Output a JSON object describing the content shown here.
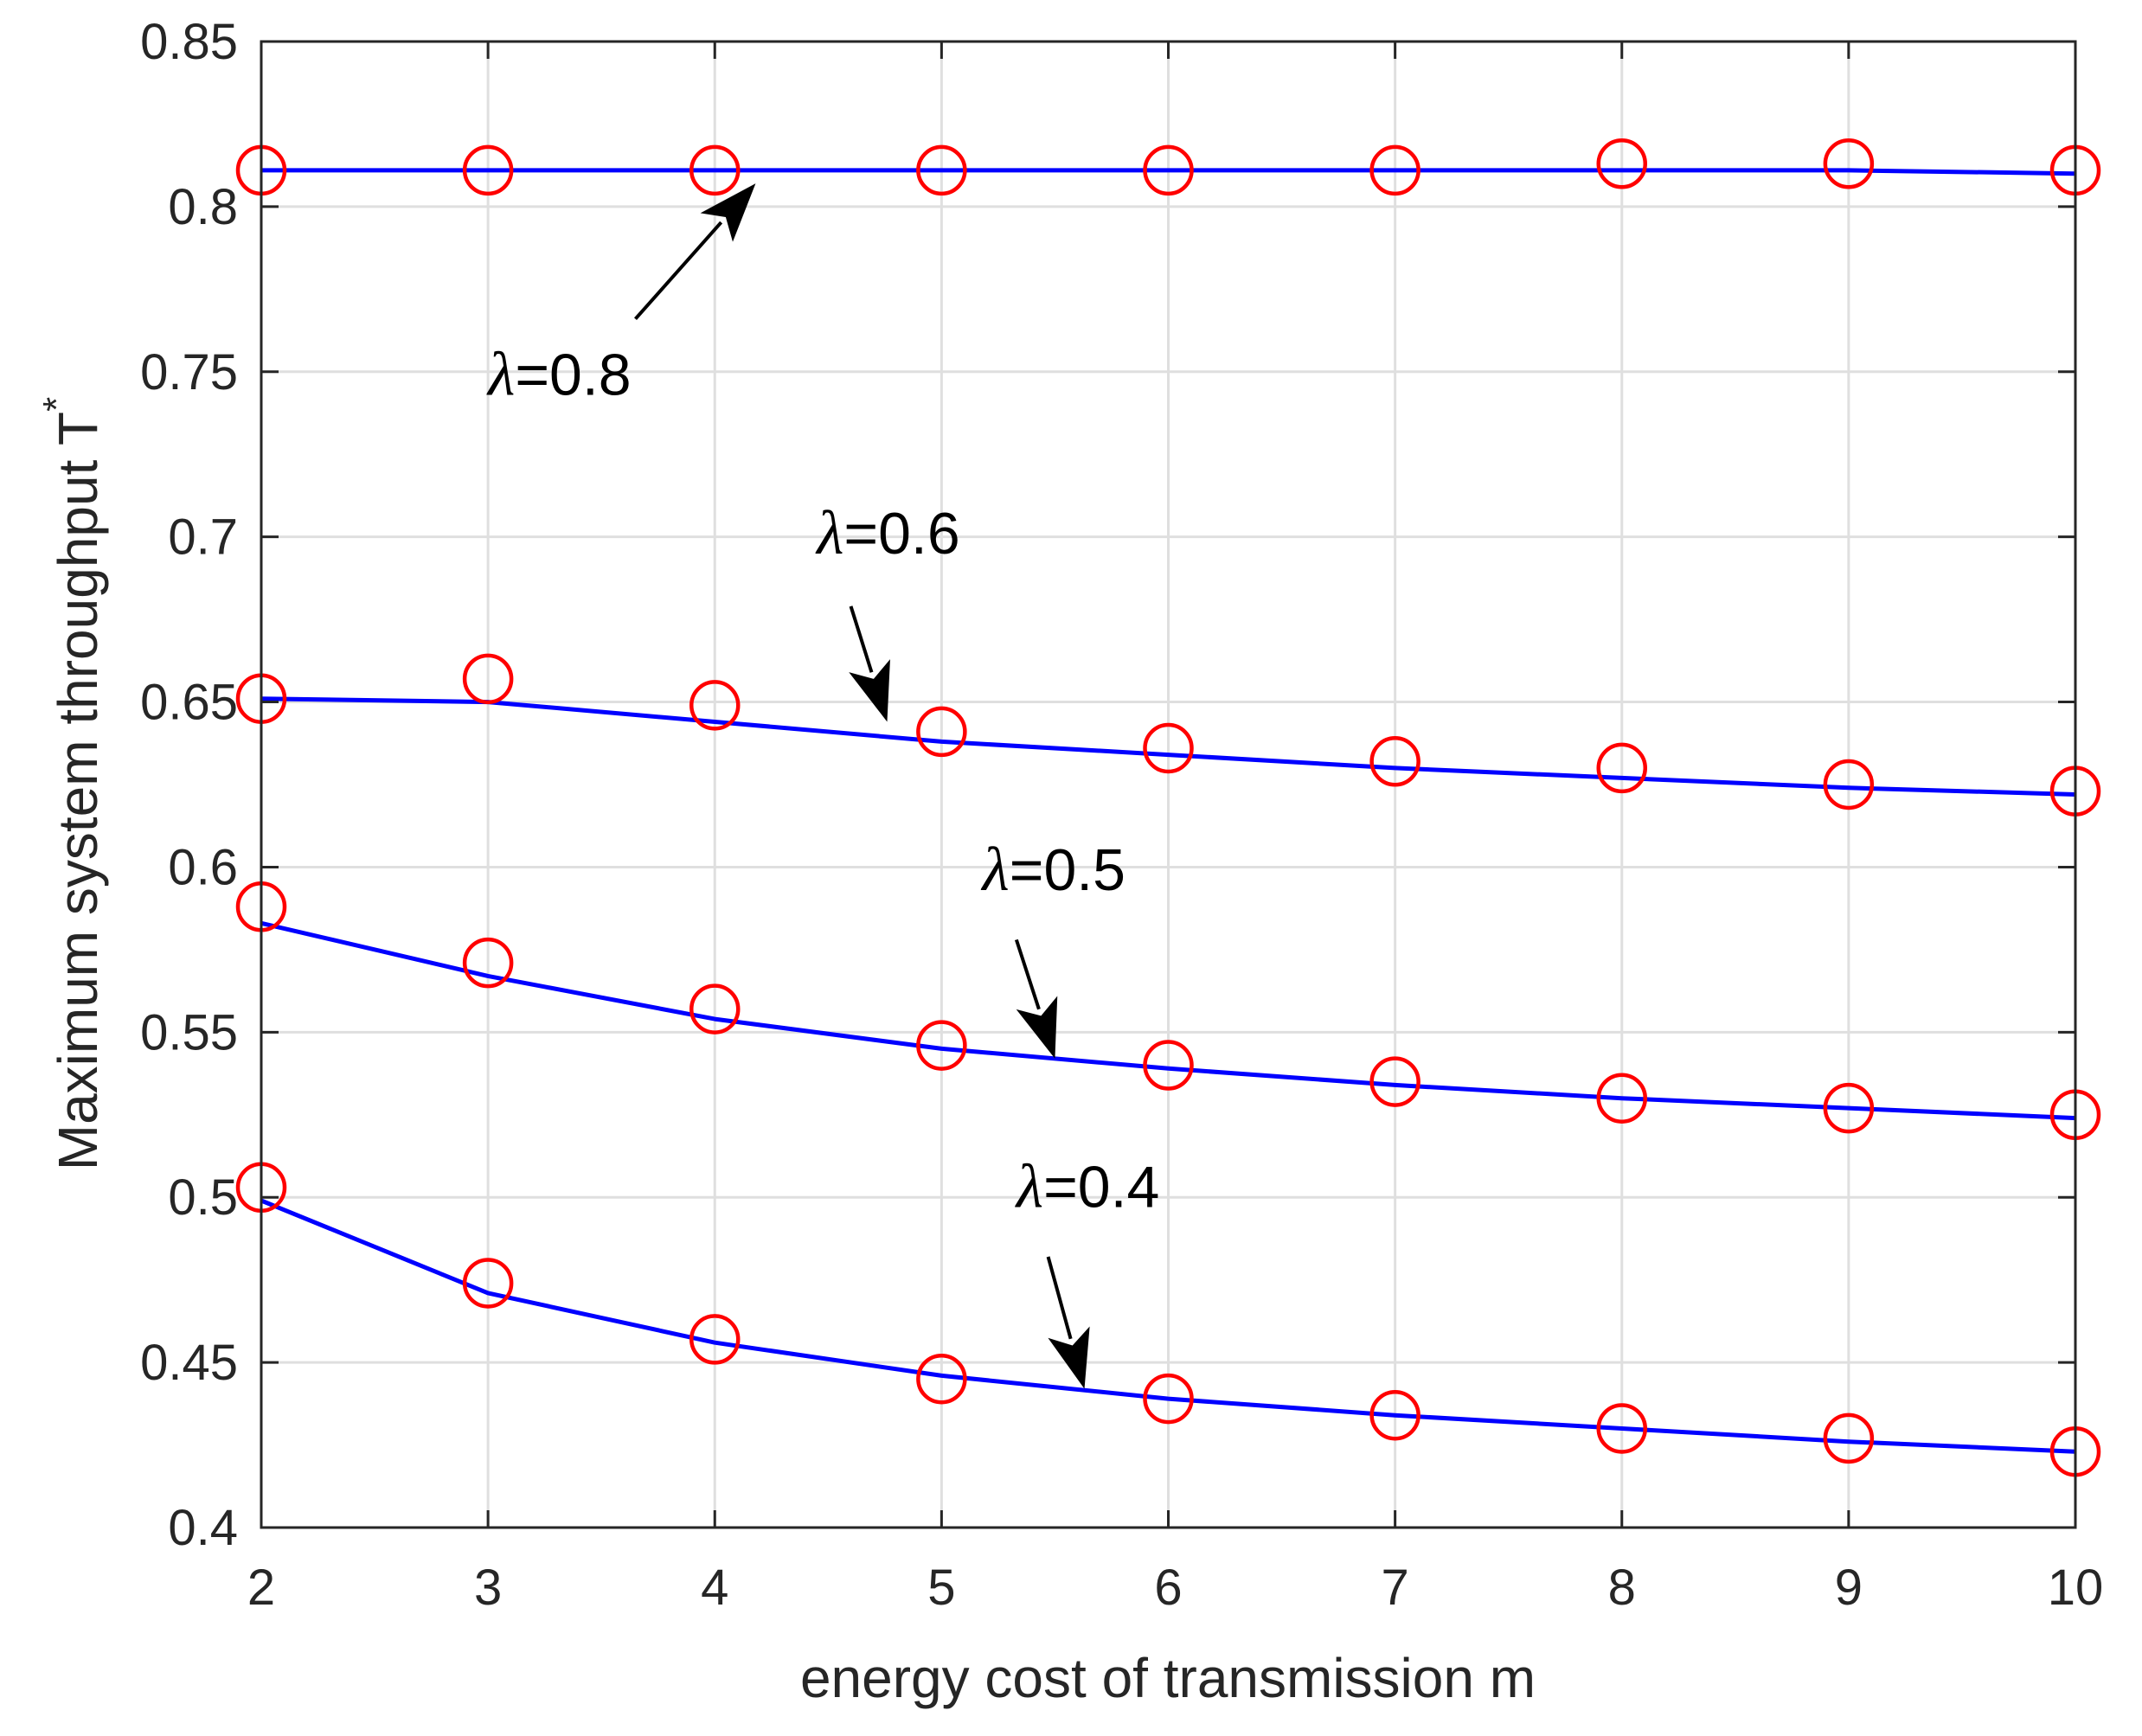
{
  "chart_data": {
    "type": "line",
    "xlabel": "energy cost of transmission m",
    "ylabel": "Maximum system throughput T",
    "ylabel_superscript": "*",
    "xlim": [
      2,
      10
    ],
    "ylim": [
      0.4,
      0.85
    ],
    "x_ticks": [
      "2",
      "3",
      "4",
      "5",
      "6",
      "7",
      "8",
      "9",
      "10"
    ],
    "y_ticks": [
      "0.4",
      "0.45",
      "0.5",
      "0.55",
      "0.6",
      "0.65",
      "0.7",
      "0.75",
      "0.8",
      "0.85"
    ],
    "grid": true,
    "x": [
      2,
      3,
      4,
      5,
      6,
      7,
      8,
      9,
      10
    ],
    "series": [
      {
        "line": [
          0.811,
          0.811,
          0.811,
          0.811,
          0.811,
          0.811,
          0.811,
          0.811,
          0.81
        ],
        "markers": [
          0.811,
          0.811,
          0.811,
          0.811,
          0.811,
          0.811,
          0.813,
          0.813,
          0.811
        ]
      },
      {
        "line": [
          0.651,
          0.65,
          0.644,
          0.638,
          0.634,
          0.63,
          0.627,
          0.624,
          0.622
        ],
        "markers": [
          0.651,
          0.657,
          0.649,
          0.641,
          0.636,
          0.632,
          0.63,
          0.625,
          0.623
        ]
      },
      {
        "line": [
          0.583,
          0.567,
          0.554,
          0.545,
          0.539,
          0.534,
          0.53,
          0.527,
          0.524
        ],
        "markers": [
          0.588,
          0.571,
          0.557,
          0.546,
          0.54,
          0.535,
          0.53,
          0.527,
          0.525
        ]
      },
      {
        "line": [
          0.499,
          0.471,
          0.456,
          0.446,
          0.439,
          0.434,
          0.43,
          0.426,
          0.423
        ],
        "markers": [
          0.503,
          0.474,
          0.457,
          0.445,
          0.439,
          0.434,
          0.43,
          0.427,
          0.423
        ]
      }
    ],
    "annotations": [
      {
        "symbol": "λ",
        "text": "=0.8",
        "label_at": [
          3.0,
          0.743
        ],
        "arrow_from": [
          3.65,
          0.766
        ],
        "arrow_to": [
          4.18,
          0.807
        ]
      },
      {
        "symbol": "λ",
        "text": "=0.6",
        "label_at": [
          4.45,
          0.695
        ],
        "arrow_from": [
          4.6,
          0.679
        ],
        "arrow_to": [
          4.76,
          0.644
        ]
      },
      {
        "symbol": "λ",
        "text": "=0.5",
        "label_at": [
          5.18,
          0.593
        ],
        "arrow_from": [
          5.33,
          0.578
        ],
        "arrow_to": [
          5.5,
          0.542
        ]
      },
      {
        "symbol": "λ",
        "text": "=0.4",
        "label_at": [
          5.33,
          0.497
        ],
        "arrow_from": [
          5.47,
          0.482
        ],
        "arrow_to": [
          5.63,
          0.442
        ]
      }
    ],
    "colors": {
      "line": "#0000ff",
      "marker": "#ff0000",
      "grid": "#dfdfdf",
      "axis": "#262626",
      "annotation": "#000000"
    }
  }
}
